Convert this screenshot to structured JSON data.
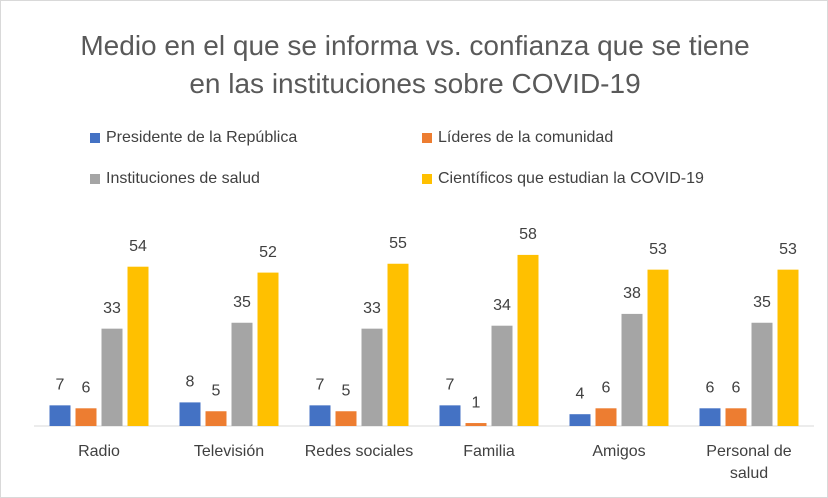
{
  "chart_data": {
    "type": "bar",
    "title": "Medio en el que se informa vs. confianza que se tiene en las instituciones sobre COVID-19",
    "categories": [
      "Radio",
      "Televisión",
      "Redes sociales",
      "Familia",
      "Amigos",
      "Personal de salud"
    ],
    "series": [
      {
        "name": "Presidente de la República",
        "color": "#4472c4",
        "values": [
          7,
          8,
          7,
          7,
          4,
          6
        ]
      },
      {
        "name": "Líderes de la comunidad",
        "color": "#ed7d31",
        "values": [
          6,
          5,
          5,
          1,
          6,
          6
        ]
      },
      {
        "name": "Instituciones de salud",
        "color": "#a5a5a5",
        "values": [
          33,
          35,
          33,
          34,
          38,
          35
        ]
      },
      {
        "name": "Científicos que estudian la COVID-19",
        "color": "#ffc000",
        "values": [
          54,
          52,
          55,
          58,
          53,
          53
        ]
      }
    ]
  }
}
